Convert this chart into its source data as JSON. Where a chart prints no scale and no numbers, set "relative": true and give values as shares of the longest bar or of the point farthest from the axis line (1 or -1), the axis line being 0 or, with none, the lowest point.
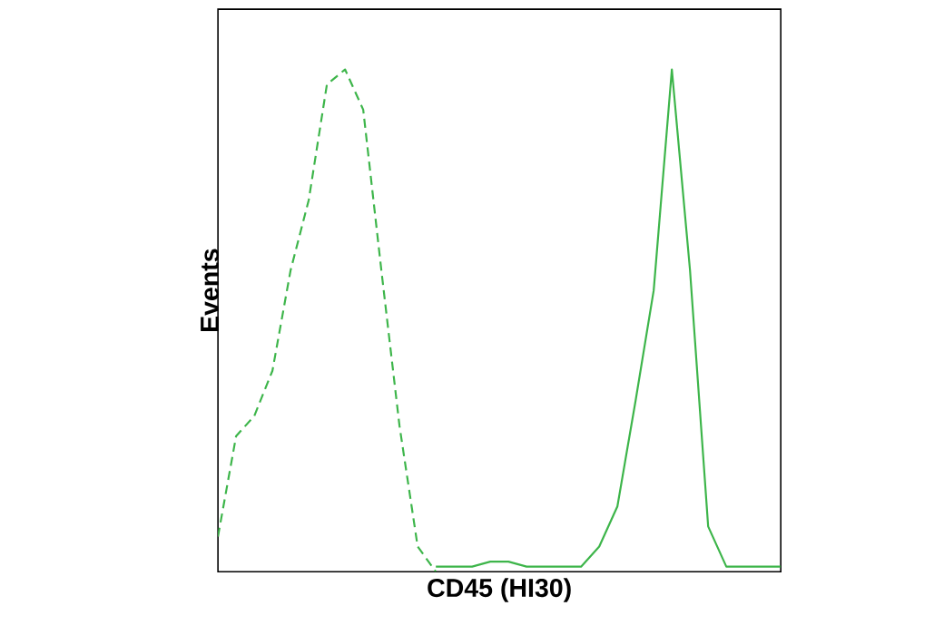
{
  "chart_data": {
    "type": "line",
    "xlabel": "CD45 (HI30)",
    "ylabel": "Events",
    "relative": true,
    "categories": [
      null,
      null,
      null,
      null,
      null,
      null,
      null,
      null,
      null,
      null,
      null,
      null,
      null,
      null,
      null,
      null,
      null,
      null,
      null,
      null,
      null,
      null,
      null,
      null,
      null,
      null,
      null,
      null,
      null,
      null,
      null,
      null
    ],
    "series": [
      {
        "color": "#3db54a",
        "line_style": "dashed",
        "values": [
          0.07,
          0.27,
          0.31,
          0.4,
          0.6,
          0.74,
          0.97,
          1.0,
          0.92,
          0.6,
          0.29,
          0.05,
          0.0,
          null,
          null,
          null,
          null,
          null,
          null,
          null,
          null,
          null,
          null,
          null,
          null,
          null,
          null,
          null,
          null,
          null,
          null,
          null
        ]
      },
      {
        "color": "#3db54a",
        "line_style": "solid",
        "values": [
          null,
          null,
          null,
          null,
          null,
          null,
          null,
          null,
          null,
          null,
          null,
          null,
          0.01,
          0.01,
          0.01,
          0.02,
          0.02,
          0.01,
          0.01,
          0.01,
          0.01,
          0.05,
          0.13,
          0.34,
          0.56,
          1.0,
          0.6,
          0.09,
          0.01,
          0.01,
          0.01,
          0.01
        ]
      }
    ]
  }
}
